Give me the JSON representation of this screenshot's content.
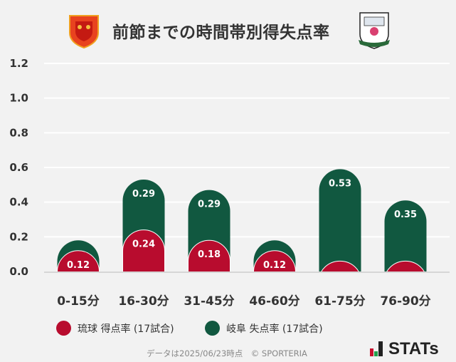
{
  "chart_data": {
    "type": "bar",
    "stacked": true,
    "title": "前節までの時間帯別得失点率",
    "categories": [
      "0-15分",
      "16-30分",
      "31-45分",
      "46-60分",
      "61-75分",
      "76-90分"
    ],
    "series": [
      {
        "name": "琉球 得点率 (17試合)",
        "color": "#b80c2e",
        "values": [
          0.12,
          0.24,
          0.18,
          0.12,
          0.06,
          0.06
        ]
      },
      {
        "name": "岐阜 失点率 (17試合)",
        "color": "#115840",
        "values": [
          0.06,
          0.29,
          0.29,
          0.06,
          0.53,
          0.35
        ]
      }
    ],
    "ylim": [
      0,
      1.2
    ],
    "yticks": [
      "0.0",
      "0.2",
      "0.4",
      "0.6",
      "0.8",
      "1.0",
      "1.2"
    ],
    "grid": true,
    "legend": "bottom"
  },
  "logos": {
    "left": "FC琉球",
    "right": "FC GIFU"
  },
  "footer": "データは2025/06/23時点　© SPORTERIA",
  "brand": "STATs",
  "colors": {
    "background": "#f2f2f2",
    "brand_red": "#c8102e",
    "brand_green": "#22a04b"
  }
}
